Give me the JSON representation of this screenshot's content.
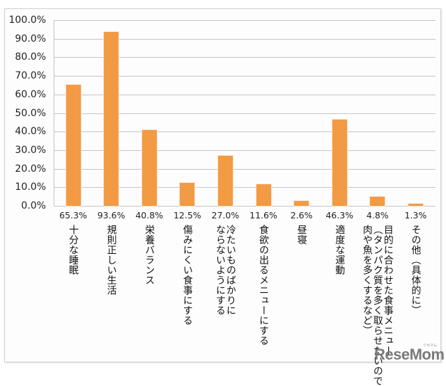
{
  "chart_data": {
    "type": "bar",
    "title": "",
    "xlabel": "",
    "ylabel": "",
    "ylim": [
      0,
      100
    ],
    "yticks": [
      "0.0%",
      "10.0%",
      "20.0%",
      "30.0%",
      "40.0%",
      "50.0%",
      "60.0%",
      "70.0%",
      "80.0%",
      "90.0%",
      "100.0%"
    ],
    "grid": true,
    "legend": null,
    "bar_color": "#f39a45",
    "categories": [
      "十分な睡眠",
      "規則正しい生活",
      "栄養バランス",
      "傷みにくい食事にする",
      "冷たいものばかりにならないようにする",
      "食欲の出るメニューにする",
      "昼寝",
      "適度な運動",
      "目的に合わせた食事メニュー（タンパク質を多く取らせたいので肉や魚を多くするなど）",
      "その他（具体的に）"
    ],
    "values": [
      65.3,
      93.6,
      40.8,
      12.5,
      27.0,
      11.6,
      2.6,
      46.3,
      4.8,
      1.3
    ],
    "value_labels": [
      "65.3%",
      "93.6%",
      "40.8%",
      "12.5%",
      "27.0%",
      "11.6%",
      "2.6%",
      "46.3%",
      "4.8%",
      "1.3%"
    ]
  },
  "axis": {
    "y_labels": [
      "100.0%",
      "90.0%",
      "80.0%",
      "70.0%",
      "60.0%",
      "50.0%",
      "40.0%",
      "30.0%",
      "20.0%",
      "10.0%",
      "0.0%"
    ]
  },
  "categories_display": [
    "十分な睡眠",
    "規則正しい生活",
    "栄養バランス",
    "傷みにくい食事にする",
    "冷たいものばかりに\nならないようにする",
    "食欲の出るメニューにする",
    "昼寝",
    "適度な運動",
    "目的に合わせた食事メニュー\n（タンパク質を多く取らせたいので\n肉や魚を多くするなど）",
    "その他（具体的に）"
  ],
  "watermark": {
    "text": "ReseMom",
    "sub": "リセマム",
    "color": "#7a7a7a"
  }
}
